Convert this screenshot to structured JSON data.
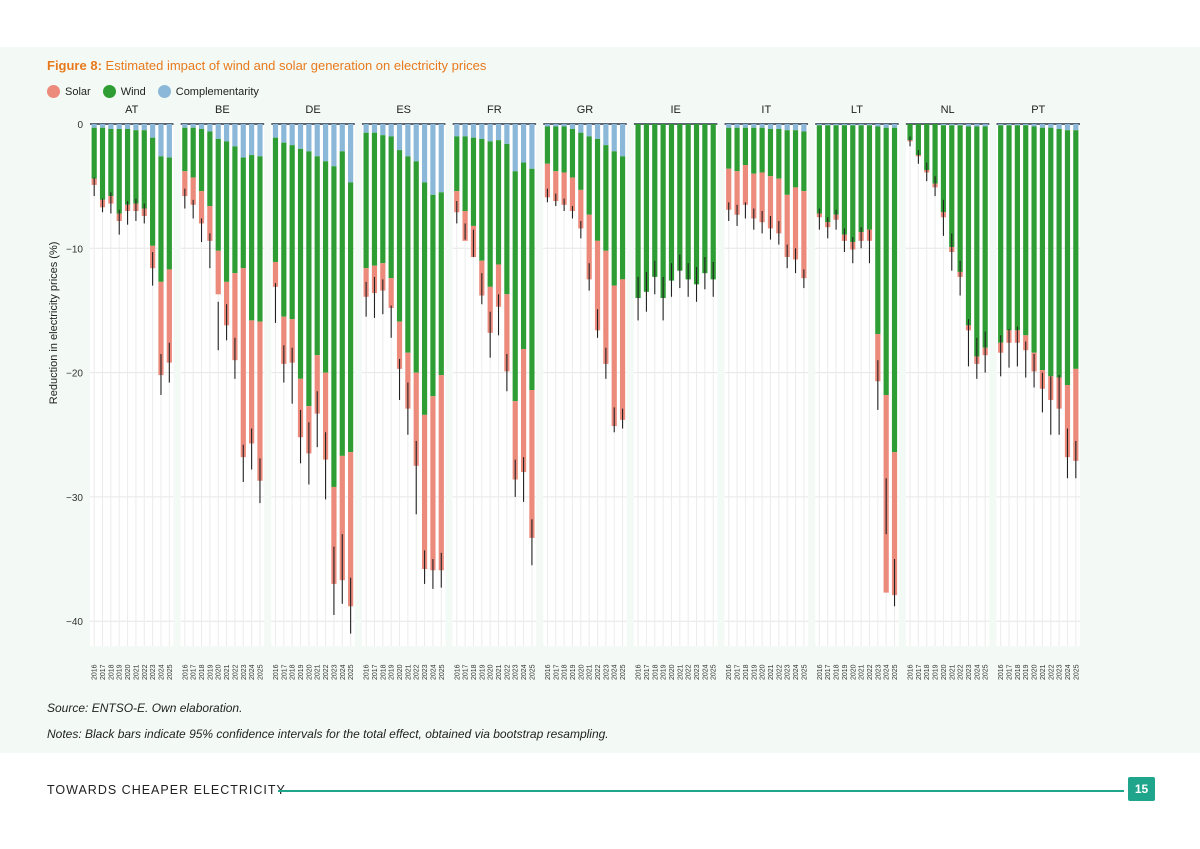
{
  "figure": {
    "title_lead": "Figure 8:",
    "title_text": "Estimated impact of wind and solar generation on electricity prices"
  },
  "legend": [
    {
      "label": "Solar",
      "color": "#ec8a7c"
    },
    {
      "label": "Wind",
      "color": "#2e9e34"
    },
    {
      "label": "Complementarity",
      "color": "#8bb8d8"
    }
  ],
  "source": "Source: ENTSO-E. Own elaboration.",
  "notes": "Notes: Black bars indicate 95% confidence intervals for the total effect, obtained via bootstrap resampling.",
  "footer": {
    "title": "TOWARDS CHEAPER ELECTRICITY",
    "page": "15"
  },
  "chart_data": {
    "type": "bar",
    "stacked": true,
    "ylabel": "Reduction in electricity prices (%)",
    "ylim": [
      -42,
      0
    ],
    "yticks": [
      0,
      -10,
      -20,
      -30,
      -40
    ],
    "years": [
      "2016",
      "2017",
      "2018",
      "2019",
      "2020",
      "2021",
      "2022",
      "2023",
      "2024",
      "2025"
    ],
    "error_bars": "95% confidence intervals for the total effect",
    "colors": {
      "solar": "#ec8a7c",
      "wind": "#2e9e34",
      "complementarity": "#8bb8d8",
      "ci": "#222222"
    },
    "panels": [
      {
        "country": "AT",
        "solar": [
          -0.5,
          -0.6,
          -0.6,
          -0.6,
          -0.5,
          -0.6,
          -0.6,
          -1.8,
          -7.5,
          -7.5
        ],
        "wind": [
          -4.1,
          -5.8,
          -5.4,
          -6.8,
          -6.1,
          -5.9,
          -6.3,
          -8.7,
          -10.1,
          -9.0
        ],
        "complementarity": [
          -0.3,
          -0.3,
          -0.4,
          -0.4,
          -0.4,
          -0.5,
          -0.5,
          -1.1,
          -2.6,
          -2.7
        ],
        "ci_low": [
          -5.8,
          -7.1,
          -7.2,
          -8.9,
          -8.1,
          -7.8,
          -8.0,
          -13.0,
          -21.8,
          -20.8
        ],
        "ci_high": [
          -4.3,
          -6.0,
          -5.5,
          -6.9,
          -6.2,
          -6.0,
          -6.4,
          -10.3,
          -18.5,
          -17.6
        ]
      },
      {
        "country": "BE",
        "solar": [
          -2.0,
          -2.2,
          -2.6,
          -2.8,
          -3.5,
          -3.5,
          -7.0,
          -15.2,
          -9.9,
          -12.8
        ],
        "wind": [
          -3.5,
          -4.0,
          -5.0,
          -6.0,
          -9.0,
          -11.3,
          -10.2,
          -8.9,
          -13.3,
          -13.3
        ],
        "complementarity": [
          -0.3,
          -0.3,
          -0.4,
          -0.6,
          -1.2,
          -1.4,
          -1.8,
          -2.7,
          -2.5,
          -2.6
        ],
        "ci_low": [
          -6.8,
          -7.6,
          -9.5,
          -11.6,
          -18.2,
          -17.4,
          -20.5,
          -28.8,
          -27.8,
          -30.5
        ],
        "ci_high": [
          -5.2,
          -6.1,
          -7.6,
          -8.8,
          -14.3,
          -14.5,
          -17.2,
          -25.8,
          -24.5,
          -26.9
        ]
      },
      {
        "country": "DE",
        "solar": [
          -2.0,
          -3.8,
          -3.5,
          -4.7,
          -3.8,
          -4.7,
          -7.0,
          -7.8,
          -10.0,
          -12.4
        ],
        "wind": [
          -10.0,
          -14.0,
          -14.0,
          -18.5,
          -20.5,
          -16.0,
          -17.0,
          -25.8,
          -24.5,
          -21.7
        ],
        "complementarity": [
          -1.1,
          -1.5,
          -1.7,
          -2.0,
          -2.2,
          -2.6,
          -3.0,
          -3.4,
          -2.2,
          -4.7
        ],
        "ci_low": [
          -16.0,
          -20.8,
          -22.5,
          -27.3,
          -29.0,
          -26.0,
          -30.2,
          -39.5,
          -38.6,
          -41.0
        ],
        "ci_high": [
          -12.8,
          -17.8,
          -18.0,
          -23.0,
          -24.0,
          -21.5,
          -24.8,
          -34.0,
          -33.0,
          -36.5
        ]
      },
      {
        "country": "ES",
        "solar": [
          -2.3,
          -2.2,
          -2.2,
          -2.4,
          -3.8,
          -4.5,
          -7.5,
          -12.4,
          -14.0,
          -15.7
        ],
        "wind": [
          -10.9,
          -10.7,
          -10.3,
          -11.4,
          -13.8,
          -15.8,
          -17.0,
          -18.7,
          -16.2,
          -14.7
        ],
        "complementarity": [
          -0.7,
          -0.7,
          -0.9,
          -1.0,
          -2.1,
          -2.6,
          -3.0,
          -4.7,
          -5.7,
          -5.5
        ],
        "ci_low": [
          -15.5,
          -15.6,
          -15.3,
          -17.2,
          -22.2,
          -25.0,
          -31.4,
          -37.0,
          -37.4,
          -37.3
        ],
        "ci_high": [
          -12.7,
          -12.3,
          -12.5,
          -14.6,
          -18.9,
          -20.8,
          -25.5,
          -34.3,
          -35.0,
          -34.5
        ]
      },
      {
        "country": "FR",
        "solar": [
          -1.7,
          -2.4,
          -2.5,
          -2.8,
          -3.7,
          -3.4,
          -6.2,
          -6.3,
          -9.9,
          -11.9
        ],
        "wind": [
          -4.4,
          -6.0,
          -7.1,
          -9.8,
          -11.7,
          -10.0,
          -12.1,
          -18.5,
          -15.0,
          -17.8
        ],
        "complementarity": [
          -1.0,
          -1.0,
          -1.1,
          -1.2,
          -1.4,
          -1.3,
          -1.6,
          -3.8,
          -3.1,
          -3.6
        ],
        "ci_low": [
          -8.0,
          -9.3,
          -10.7,
          -14.5,
          -18.8,
          -17.0,
          -21.5,
          -30.0,
          -30.4,
          -35.5
        ],
        "ci_high": [
          -6.2,
          -8.0,
          -8.5,
          -12.0,
          -15.1,
          -13.7,
          -18.5,
          -27.0,
          -26.8,
          -31.8
        ]
      },
      {
        "country": "GR",
        "solar": [
          -2.7,
          -2.4,
          -2.6,
          -2.7,
          -3.1,
          -5.2,
          -7.2,
          -9.1,
          -11.3,
          -11.3
        ],
        "wind": [
          -3.0,
          -3.6,
          -3.7,
          -3.9,
          -4.6,
          -6.3,
          -8.2,
          -8.5,
          -10.8,
          -9.9
        ],
        "complementarity": [
          -0.2,
          -0.2,
          -0.2,
          -0.4,
          -0.7,
          -1.0,
          -1.2,
          -1.7,
          -2.2,
          -2.6
        ],
        "ci_low": [
          -6.3,
          -6.6,
          -7.0,
          -7.6,
          -9.2,
          -13.4,
          -17.2,
          -20.5,
          -24.8,
          -24.5
        ],
        "ci_high": [
          -5.2,
          -5.6,
          -6.0,
          -6.6,
          -7.8,
          -11.2,
          -14.9,
          -18.0,
          -22.8,
          -22.9
        ]
      },
      {
        "country": "IE",
        "solar": [
          0,
          0,
          0,
          0,
          0,
          0,
          0,
          0,
          0,
          0
        ],
        "wind": [
          -14.0,
          -13.5,
          -12.3,
          -14.0,
          -12.6,
          -11.8,
          -12.5,
          -12.9,
          -12.0,
          -12.5
        ],
        "complementarity": [
          0,
          0,
          0,
          0,
          0,
          0,
          0,
          0,
          0,
          0
        ],
        "ci_low": [
          -15.8,
          -15.1,
          -13.7,
          -15.8,
          -13.9,
          -13.2,
          -13.9,
          -14.3,
          -13.3,
          -13.9
        ],
        "ci_high": [
          -12.3,
          -11.9,
          -11.0,
          -12.3,
          -11.2,
          -10.5,
          -11.2,
          -11.5,
          -10.7,
          -11.1
        ]
      },
      {
        "country": "IT",
        "solar": [
          -3.3,
          -3.5,
          -3.2,
          -3.6,
          -4.0,
          -4.2,
          -4.4,
          -5.0,
          -5.8,
          -7.0
        ],
        "wind": [
          -3.3,
          -3.5,
          -3.0,
          -3.7,
          -3.6,
          -3.8,
          -4.0,
          -5.2,
          -4.6,
          -4.8
        ],
        "complementarity": [
          -0.3,
          -0.3,
          -0.3,
          -0.3,
          -0.3,
          -0.4,
          -0.4,
          -0.5,
          -0.5,
          -0.6
        ],
        "ci_low": [
          -7.8,
          -8.2,
          -7.6,
          -8.5,
          -8.8,
          -9.3,
          -9.7,
          -11.6,
          -12.0,
          -13.2
        ],
        "ci_high": [
          -6.3,
          -6.5,
          -6.3,
          -6.8,
          -7.0,
          -7.4,
          -7.8,
          -9.7,
          -10.0,
          -11.7
        ]
      },
      {
        "country": "LT",
        "solar": [
          -0.3,
          -0.4,
          -0.4,
          -0.5,
          -0.6,
          -0.7,
          -0.9,
          -3.8,
          -15.9,
          -11.5
        ],
        "wind": [
          -7.1,
          -7.8,
          -7.2,
          -8.8,
          -9.4,
          -8.6,
          -8.4,
          -16.7,
          -21.5,
          -26.1
        ],
        "complementarity": [
          -0.1,
          -0.1,
          -0.1,
          -0.1,
          -0.1,
          -0.1,
          -0.1,
          -0.2,
          -0.3,
          -0.3
        ],
        "ci_low": [
          -8.5,
          -9.2,
          -8.5,
          -10.3,
          -11.2,
          -10.0,
          -11.2,
          -23.0,
          -33.0,
          -38.8
        ],
        "ci_high": [
          -6.8,
          -7.5,
          -6.9,
          -8.4,
          -9.1,
          -8.3,
          -8.5,
          -19.0,
          -28.5,
          -35.0
        ]
      },
      {
        "country": "NL",
        "solar": [
          -0.1,
          -0.1,
          -0.2,
          -0.3,
          -0.4,
          -0.4,
          -0.4,
          -0.4,
          -0.6,
          -0.6
        ],
        "wind": [
          -1.3,
          -2.5,
          -3.7,
          -4.8,
          -7.0,
          -9.8,
          -11.8,
          -16.0,
          -18.5,
          -17.8
        ],
        "complementarity": [
          0,
          0,
          0,
          0,
          -0.1,
          -0.1,
          -0.1,
          -0.2,
          -0.2,
          -0.2
        ],
        "ci_low": [
          -1.8,
          -3.2,
          -4.6,
          -5.8,
          -9.0,
          -11.8,
          -13.8,
          -19.5,
          -20.5,
          -20.0
        ],
        "ci_high": [
          -1.0,
          -2.1,
          -3.1,
          -4.2,
          -6.1,
          -8.8,
          -11.0,
          -15.7,
          -17.2,
          -16.7
        ]
      },
      {
        "country": "PT",
        "solar": [
          -0.8,
          -1.0,
          -1.0,
          -1.2,
          -1.5,
          -1.5,
          -1.9,
          -2.5,
          -5.8,
          -7.4
        ],
        "wind": [
          -17.5,
          -16.5,
          -16.5,
          -16.9,
          -18.2,
          -19.5,
          -20.0,
          -20.0,
          -20.5,
          -19.2
        ],
        "complementarity": [
          -0.1,
          -0.1,
          -0.1,
          -0.1,
          -0.2,
          -0.3,
          -0.3,
          -0.4,
          -0.5,
          -0.5
        ],
        "ci_low": [
          -20.3,
          -19.6,
          -19.5,
          -20.4,
          -21.2,
          -23.2,
          -25.0,
          -25.0,
          -28.5,
          -28.5
        ],
        "ci_high": [
          -17.0,
          -16.5,
          -16.3,
          -17.5,
          -18.5,
          -20.0,
          -20.3,
          -20.2,
          -24.5,
          -25.5
        ]
      }
    ]
  }
}
